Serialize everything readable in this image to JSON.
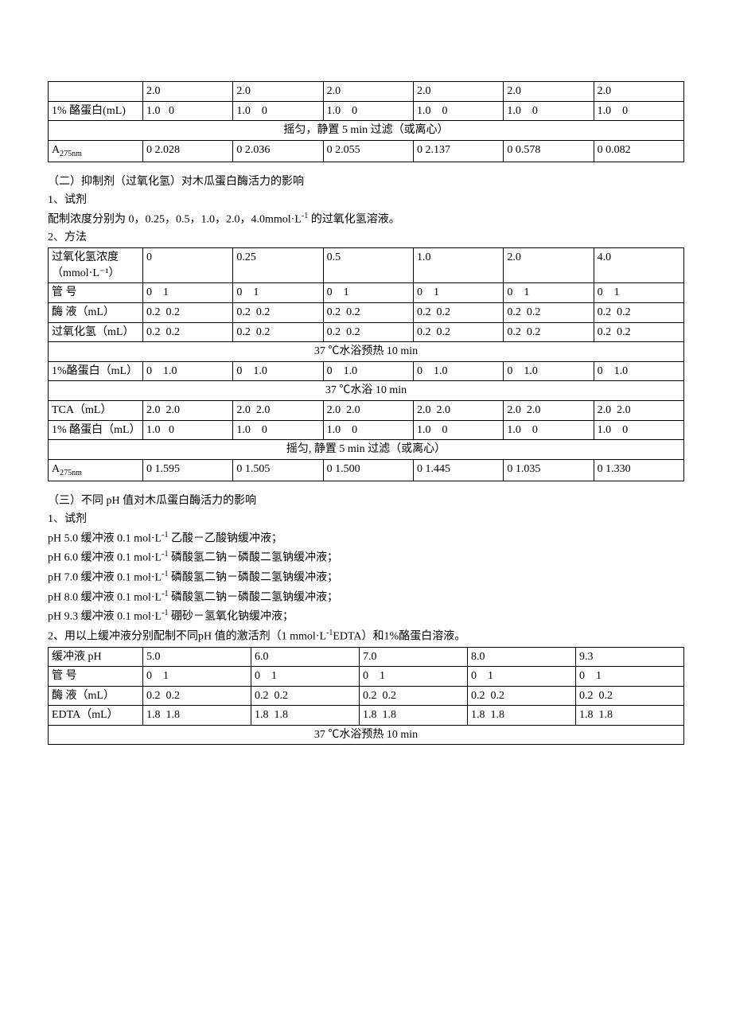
{
  "colors": {
    "text": "#000000",
    "background": "#ffffff",
    "border": "#000000"
  },
  "typography": {
    "font_family": "SimSun",
    "font_size_pt": 10.5
  },
  "table1": {
    "rows": [
      {
        "label": "",
        "cells": [
          "2.0",
          "2.0",
          "2.0",
          "2.0",
          "2.0",
          "2.0"
        ]
      },
      {
        "label": "1% 酪蛋白(mL)",
        "cells": [
          "1.0   0",
          "1.0    0",
          "1.0    0",
          "1.0    0",
          "1.0    0",
          "1.0    0"
        ]
      }
    ],
    "merged1": "摇匀，静置 5 min 过滤（或离心）",
    "absorb_label": "A",
    "absorb_sub": "275nm",
    "absorb_cells": [
      "0 2.028",
      "0 2.036",
      "0 2.055",
      "0 2.137",
      "0 0.578",
      "0 0.082"
    ]
  },
  "sec2": {
    "heading": "（二）抑制剂（过氧化氢）对木瓜蛋白酶活力的影响",
    "line1": "1、试剂",
    "line2_pre": "配制浓度分别为 0，0.25，0.5，1.0，2.0，4.0mmol·L",
    "line2_sup": "-1",
    "line2_post": " 的过氧化氢溶液。",
    "line3": "2、方法"
  },
  "table2": {
    "header_label": "过氧化氢浓度（mmol·L⁻¹）",
    "header_cells": [
      "0",
      "0.25",
      "0.5",
      "1.0",
      "2.0",
      "4.0"
    ],
    "tube_label": "管 号",
    "tube_cells": [
      "0    1",
      "0    1",
      "0    1",
      "0    1",
      "0    1",
      "0    1"
    ],
    "enzyme_label": "酶 液（mL）",
    "enzyme_cells": [
      "0.2  0.2",
      "0.2  0.2",
      "0.2  0.2",
      "0.2  0.2",
      "0.2  0.2",
      "0.2  0.2"
    ],
    "h2o2_label": "过氧化氢（mL）",
    "h2o2_cells": [
      "0.2  0.2",
      "0.2  0.2",
      "0.2  0.2",
      "0.2  0.2",
      "0.2  0.2",
      "0.2  0.2"
    ],
    "merged1": "37 ℃水浴预热 10 min",
    "casein1_label": "1%酪蛋白（mL）",
    "casein1_cells": [
      "0    1.0",
      "0    1.0",
      "0    1.0",
      "0    1.0",
      "0    1.0",
      "0    1.0"
    ],
    "merged2": "37 ℃水浴 10 min",
    "tca_label": "TCA（mL）",
    "tca_cells": [
      "2.0  2.0",
      "2.0  2.0",
      "2.0  2.0",
      "2.0  2.0",
      "2.0  2.0",
      "2.0  2.0"
    ],
    "casein2_label": "1% 酪蛋白（mL）",
    "casein2_cells": [
      "1.0   0",
      "1.0    0",
      "1.0    0",
      "1.0    0",
      "1.0    0",
      "1.0    0"
    ],
    "merged3": "摇匀, 静置 5 min 过滤（或离心）",
    "absorb_label": "A",
    "absorb_sub": "275nm",
    "absorb_cells": [
      "0 1.595",
      "0 1.505",
      "0 1.500",
      "0 1.445",
      "0 1.035",
      "0 1.330"
    ]
  },
  "sec3": {
    "heading": "（三）不同 pH 值对木瓜蛋白酶活力的影响",
    "line1": "1、试剂",
    "buffers": [
      {
        "pre": "pH 5.0 缓冲液 0.1 mol·L",
        "sup": "-1",
        "post": " 乙酸－乙酸钠缓冲液；"
      },
      {
        "pre": "pH 6.0 缓冲液 0.1 mol·L",
        "sup": "-1",
        "post": " 磷酸氢二钠－磷酸二氢钠缓冲液；"
      },
      {
        "pre": "pH 7.0 缓冲液 0.1 mol·L",
        "sup": "-1",
        "post": " 磷酸氢二钠－磷酸二氢钠缓冲液；"
      },
      {
        "pre": "pH 8.0 缓冲液 0.1 mol·L",
        "sup": "-1",
        "post": " 磷酸氢二钠－磷酸二氢钠缓冲液；"
      },
      {
        "pre": "pH 9.3 缓冲液 0.1 mol·L",
        "sup": "-1",
        "post": " 硼砂－氢氧化钠缓冲液；"
      }
    ],
    "line2_pre": "2、用以上缓冲液分别配制不同pH 值的激活剂（1 mmol·L",
    "line2_sup": "-1",
    "line2_post": "EDTA）和1%酪蛋白溶液。"
  },
  "table3": {
    "header_label": "缓冲液 pH",
    "header_cells": [
      "5.0",
      "6.0",
      "7.0",
      "8.0",
      "9.3"
    ],
    "tube_label": "管 号",
    "tube_cells": [
      "0    1",
      "0    1",
      "0    1",
      "0    1",
      "0    1"
    ],
    "enzyme_label": "酶 液（mL）",
    "enzyme_cells": [
      "0.2  0.2",
      "0.2  0.2",
      "0.2  0.2",
      "0.2  0.2",
      "0.2  0.2"
    ],
    "edta_label": "EDTA（mL）",
    "edta_cells": [
      "1.8  1.8",
      "1.8  1.8",
      "1.8  1.8",
      "1.8  1.8",
      "1.8  1.8"
    ],
    "merged1": "37 ℃水浴预热 10 min"
  }
}
